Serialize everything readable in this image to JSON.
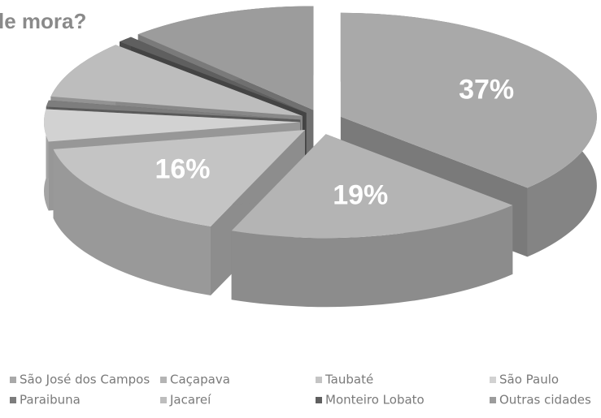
{
  "chart_data": {
    "type": "pie3d",
    "title": "le mora?",
    "categories": [
      "São José dos Campos",
      "Caçapava",
      "Taubaté",
      "São Paulo",
      "Paraibuna",
      "Jacareí",
      "Monteiro Lobato",
      "Outras cidades"
    ],
    "values": [
      37,
      19,
      16,
      5,
      1,
      9,
      1,
      12
    ],
    "value_labels": [
      "37%",
      "19%",
      "16%",
      null,
      null,
      null,
      null,
      null
    ],
    "colors": [
      "#a9a9a9",
      "#b4b4b4",
      "#c4c4c4",
      "#d2d2d2",
      "#7d7d7d",
      "#bdbdbd",
      "#5f5f5f",
      "#9c9c9c"
    ],
    "legend": "bottom"
  }
}
